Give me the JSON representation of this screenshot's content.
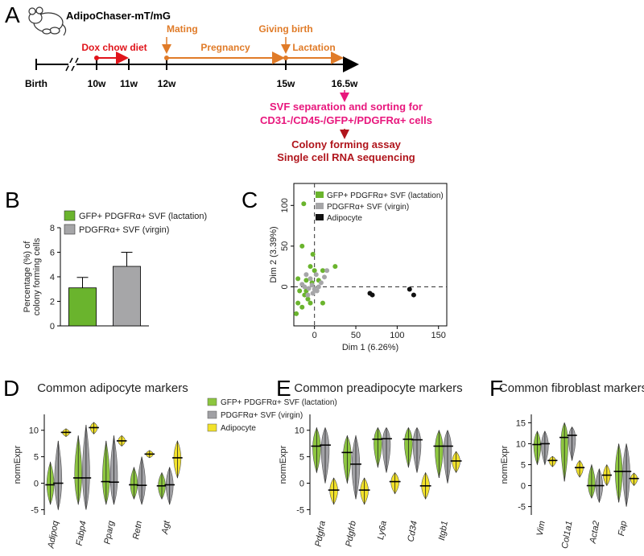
{
  "timeline": {
    "panel": "A",
    "title": "AdipoChaser-mT/mG",
    "milestones": [
      "Birth",
      "10w",
      "11w",
      "12w",
      "15w",
      "16.5w"
    ],
    "events": [
      "Dox chow diet",
      "Mating",
      "Pregnancy",
      "Giving birth",
      "Lactation"
    ],
    "steps": [
      "SVF separation and sorting for",
      "CD31-/CD45-/GFP+/PDGFRα+ cells",
      "Colony forming assay",
      "Single cell RNA sequencing"
    ]
  },
  "chart_data": [
    {
      "panel": "B",
      "type": "bar",
      "y_label": [
        "Percentage (%) of",
        "colony forming cells"
      ],
      "series": [
        {
          "name": "GFP+ PDGFRα+ SVF (lactation)",
          "color": "#6ab42d",
          "values": [
            3.1
          ],
          "errors": [
            0.85
          ]
        },
        {
          "name": "PDGFRα+ SVF (virgin)",
          "color": "#a6a6a8",
          "values": [
            4.85
          ],
          "errors": [
            1.15
          ]
        }
      ],
      "ylim": [
        0,
        8
      ],
      "yticks": [
        0,
        2,
        4,
        6,
        8
      ]
    },
    {
      "panel": "C",
      "type": "scatter",
      "x_label": "Dim 1 (6.26%)",
      "y_label": "Dim 2 (3.39%)",
      "series": [
        {
          "name": "GFP+ PDGFRα+ SVF (lactation)",
          "color": "#6ab42d",
          "x": [
            -13,
            -15,
            -2,
            -5,
            0,
            10,
            25,
            -20,
            -10,
            -3,
            -18,
            -12,
            -8,
            -20,
            -15,
            -22,
            -5,
            10,
            -10,
            5
          ],
          "y": [
            102,
            50,
            40,
            25,
            20,
            20,
            25,
            10,
            8,
            5,
            -5,
            -10,
            -15,
            -20,
            -25,
            -33,
            -20,
            -20,
            -5,
            8
          ]
        },
        {
          "name": "PDGFRα+ SVF (virgin)",
          "color": "#a6a6a8",
          "x": [
            -10,
            -5,
            -3,
            0,
            3,
            8,
            12,
            15,
            -7,
            -12,
            -2,
            5,
            -15,
            -8,
            2
          ],
          "y": [
            15,
            10,
            2,
            -3,
            -5,
            5,
            12,
            20,
            -2,
            0,
            -8,
            0,
            3,
            -10,
            15
          ]
        },
        {
          "name": "Adipocyte",
          "color": "#111111",
          "x": [
            67,
            70,
            115,
            120
          ],
          "y": [
            -8,
            -10,
            -3,
            -10
          ]
        }
      ],
      "reference_lines": {
        "x": 0,
        "y": 0
      },
      "xlim": [
        -25,
        160
      ],
      "ylim": [
        -48,
        127
      ],
      "xticks": [
        0,
        50,
        100,
        150
      ],
      "yticks": [
        0,
        50,
        100
      ]
    },
    {
      "panel": "D",
      "type": "violin",
      "title": "Common adipocyte markers",
      "y_label": "normExpr",
      "categories": [
        "Adipoq",
        "Fabp4",
        "Pparg",
        "Retn",
        "Agt"
      ],
      "series": [
        {
          "name": "GFP+ PDGFRα+ SVF (lactation)",
          "color": "#8dc63f",
          "values": [
            -0.3,
            1,
            0.3,
            -0.3,
            -0.5
          ],
          "ranges": [
            [
              -4,
              4
            ],
            [
              -4,
              9
            ],
            [
              -4,
              8
            ],
            [
              -3,
              3
            ],
            [
              -3,
              2
            ]
          ]
        },
        {
          "name": "PDGFRα+ SVF (virgin)",
          "color": "#a0a0a4",
          "values": [
            0,
            1,
            0.2,
            -0.4,
            -0.3
          ],
          "ranges": [
            [
              -5,
              8
            ],
            [
              -5,
              11
            ],
            [
              -4,
              9
            ],
            [
              -4,
              5
            ],
            [
              -4,
              3
            ]
          ]
        },
        {
          "name": "Adipocyte",
          "color": "#f2e22a",
          "values": [
            9.6,
            10.5,
            8,
            5.5,
            4.8
          ],
          "ranges": [
            [
              8.8,
              10.3
            ],
            [
              9.3,
              11.5
            ],
            [
              7,
              9
            ],
            [
              4.8,
              6.2
            ],
            [
              1,
              8
            ]
          ]
        }
      ],
      "ylim": [
        -6,
        13
      ],
      "yticks": [
        -5,
        0,
        5,
        10
      ]
    },
    {
      "panel": "E",
      "type": "violin",
      "title": "Common preadipocyte markers",
      "y_label": "normExpr",
      "categories": [
        "Pdgfra",
        "Pdgfrb",
        "Ly6a",
        "Cd34",
        "Itgb1"
      ],
      "series": [
        {
          "color": "#8dc63f",
          "values": [
            7,
            5.8,
            8.3,
            8.3,
            7
          ],
          "ranges": [
            [
              2,
              10.5
            ],
            [
              0,
              9
            ],
            [
              3,
              10.5
            ],
            [
              3,
              10.5
            ],
            [
              1,
              10
            ]
          ]
        },
        {
          "color": "#a0a0a4",
          "values": [
            7.2,
            3.6,
            8.4,
            8.2,
            7
          ],
          "ranges": [
            [
              0,
              10.5
            ],
            [
              -3,
              9
            ],
            [
              2,
              10.5
            ],
            [
              2,
              10.5
            ],
            [
              0,
              10
            ]
          ]
        },
        {
          "color": "#f2e22a",
          "values": [
            -1.3,
            -1.3,
            0.3,
            -0.5,
            4.2
          ],
          "ranges": [
            [
              -4,
              1
            ],
            [
              -4,
              1
            ],
            [
              -2,
              2
            ],
            [
              -3,
              2
            ],
            [
              2,
              6
            ]
          ]
        }
      ],
      "ylim": [
        -6,
        13
      ],
      "yticks": [
        -5,
        0,
        5,
        10
      ]
    },
    {
      "panel": "F",
      "type": "violin",
      "title": "Common fibroblast markers",
      "y_label": "normExpr",
      "categories": [
        "Vim",
        "Col1a1",
        "Acta2",
        "Fap"
      ],
      "series": [
        {
          "color": "#8dc63f",
          "values": [
            9.8,
            11.5,
            0,
            3.4
          ],
          "ranges": [
            [
              5,
              13
            ],
            [
              1,
              15
            ],
            [
              -3,
              5
            ],
            [
              -4,
              10
            ]
          ]
        },
        {
          "color": "#a0a0a4",
          "values": [
            10,
            12,
            0,
            3.4
          ],
          "ranges": [
            [
              5,
              13
            ],
            [
              6,
              14
            ],
            [
              -4,
              4
            ],
            [
              -5,
              10
            ]
          ]
        },
        {
          "color": "#f2e22a",
          "values": [
            6,
            4.3,
            2.5,
            1.7
          ],
          "ranges": [
            [
              4.5,
              7
            ],
            [
              2,
              6
            ],
            [
              0,
              5
            ],
            [
              0,
              3
            ]
          ]
        }
      ],
      "ylim": [
        -7,
        17
      ],
      "yticks": [
        -5,
        0,
        5,
        10,
        15
      ]
    }
  ]
}
